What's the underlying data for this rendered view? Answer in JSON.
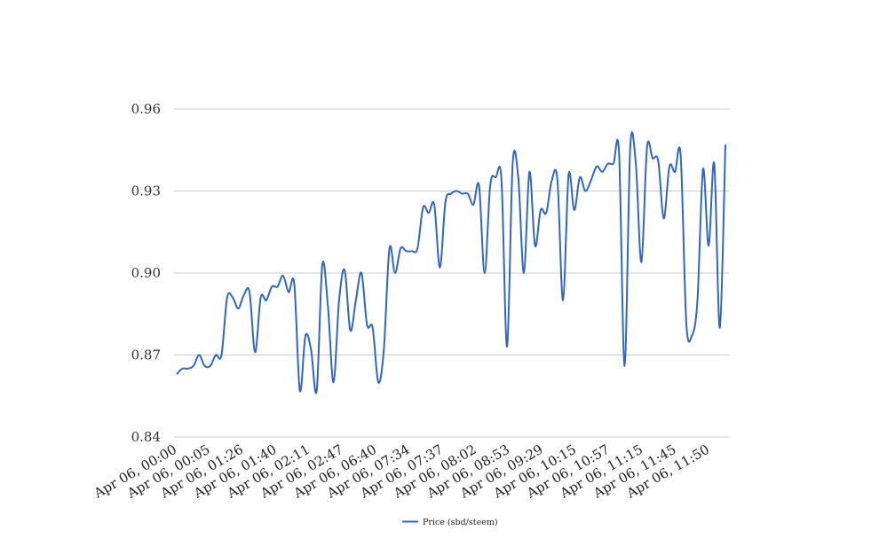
{
  "chart_data": {
    "type": "line",
    "title": "",
    "xlabel": "",
    "ylabel": "",
    "ylim": [
      0.84,
      0.96
    ],
    "yticks": [
      "0.84",
      "0.87",
      "0.90",
      "0.93",
      "0.96"
    ],
    "grid": true,
    "legend_position": "bottom-center",
    "x_tick_labels": [
      "Apr 06, 00:00",
      "Apr 06, 00:05",
      "Apr 06, 01:26",
      "Apr 06, 01:40",
      "Apr 06, 02:11",
      "Apr 06, 02:47",
      "Apr 06, 06:40",
      "Apr 06, 07:34",
      "Apr 06, 07:37",
      "Apr 06, 08:02",
      "Apr 06, 08:53",
      "Apr 06, 09:29",
      "Apr 06, 10:15",
      "Apr 06, 10:57",
      "Apr 06, 11:15",
      "Apr 06, 11:45",
      "Apr 06, 11:50"
    ],
    "series": [
      {
        "name": "Price (sbd/steem)",
        "color": "#3366bb",
        "values": [
          0.863,
          0.865,
          0.865,
          0.866,
          0.87,
          0.866,
          0.866,
          0.87,
          0.87,
          0.891,
          0.891,
          0.887,
          0.892,
          0.893,
          0.871,
          0.891,
          0.89,
          0.895,
          0.895,
          0.899,
          0.893,
          0.896,
          0.857,
          0.877,
          0.872,
          0.857,
          0.903,
          0.888,
          0.86,
          0.89,
          0.901,
          0.879,
          0.89,
          0.9,
          0.881,
          0.88,
          0.86,
          0.872,
          0.909,
          0.9,
          0.909,
          0.908,
          0.908,
          0.909,
          0.924,
          0.922,
          0.925,
          0.902,
          0.926,
          0.929,
          0.93,
          0.929,
          0.929,
          0.925,
          0.932,
          0.9,
          0.932,
          0.935,
          0.934,
          0.873,
          0.94,
          0.935,
          0.9,
          0.937,
          0.91,
          0.923,
          0.922,
          0.934,
          0.934,
          0.89,
          0.936,
          0.923,
          0.935,
          0.93,
          0.934,
          0.939,
          0.937,
          0.94,
          0.94,
          0.944,
          0.866,
          0.946,
          0.94,
          0.904,
          0.946,
          0.942,
          0.941,
          0.92,
          0.939,
          0.937,
          0.943,
          0.882,
          0.877,
          0.89,
          0.938,
          0.91,
          0.94,
          0.88,
          0.947
        ]
      }
    ]
  }
}
